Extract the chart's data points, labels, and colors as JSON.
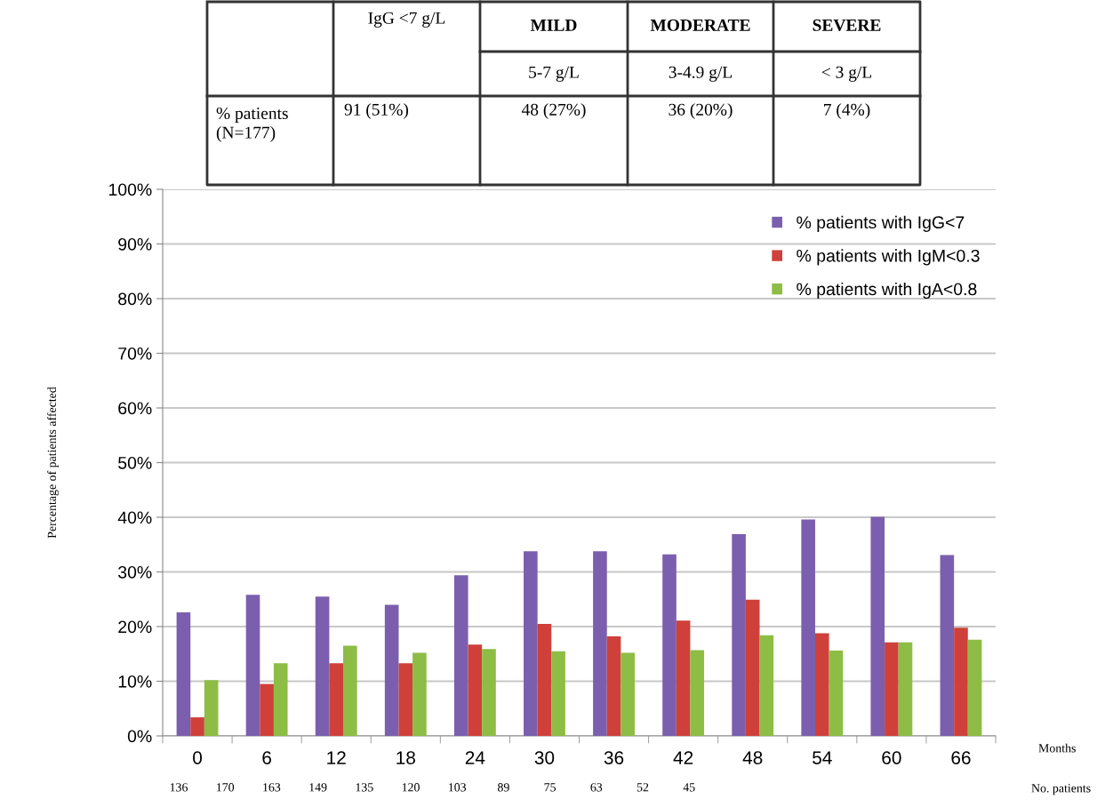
{
  "chart_data": {
    "type": "bar",
    "ylabel": "Percentage of patients affected",
    "categories": [
      "0",
      "6",
      "12",
      "18",
      "24",
      "30",
      "36",
      "42",
      "48",
      "54",
      "60",
      "66"
    ],
    "series": [
      {
        "name": "% patients with IgG<7",
        "color": "#7b5fae",
        "values": [
          22.6,
          25.8,
          25.5,
          24.0,
          29.4,
          33.8,
          33.8,
          33.2,
          36.9,
          39.6,
          40.1,
          33.1
        ]
      },
      {
        "name": "% patients with IgM<0.3",
        "color": "#cf403b",
        "values": [
          3.4,
          9.5,
          13.3,
          13.3,
          16.7,
          20.5,
          18.2,
          21.1,
          24.9,
          18.8,
          17.1,
          19.8
        ]
      },
      {
        "name": "% patients with IgA<0.8",
        "color": "#8dbd44",
        "values": [
          10.2,
          13.3,
          16.5,
          15.2,
          15.9,
          15.5,
          15.2,
          15.7,
          18.4,
          15.6,
          17.1,
          17.6
        ]
      }
    ],
    "ylim": [
      0,
      100
    ],
    "yticks": [
      {
        "value": 0,
        "label": "0%"
      },
      {
        "value": 10,
        "label": "10%"
      },
      {
        "value": 20,
        "label": "20%"
      },
      {
        "value": 30,
        "label": "30%"
      },
      {
        "value": 40,
        "label": "40%"
      },
      {
        "value": 50,
        "label": "50%"
      },
      {
        "value": 60,
        "label": "60%"
      },
      {
        "value": 70,
        "label": "70%"
      },
      {
        "value": 80,
        "label": "80%"
      },
      {
        "value": 90,
        "label": "90%"
      },
      {
        "value": 100,
        "label": "100%"
      }
    ],
    "grid": "y",
    "legend": "top right",
    "annotations": [
      "IgG <7 g/L",
      "MILD",
      "MODERATE",
      "SEVERE",
      "5-7 g/L",
      "3-4.9 g/L",
      "< 3 g/L",
      "% patients\n(N=177)",
      "91 (51%)",
      "48 (27%)",
      "36 (20%)",
      "7 (4%)",
      "Months",
      "No. patients",
      "136",
      "170",
      "163",
      "149",
      "135",
      "120",
      "103",
      "89",
      "75",
      "63",
      "52",
      "45"
    ]
  }
}
